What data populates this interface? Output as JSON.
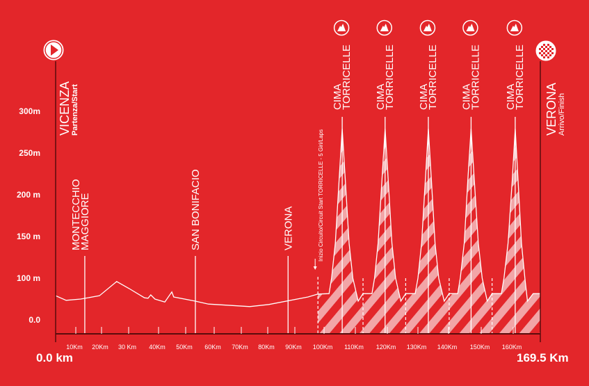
{
  "colors": {
    "background": "#e3262a",
    "line": "#ffffff",
    "axis": "#5a0c0c",
    "hatch": "#f2a5a7"
  },
  "chart_data": {
    "type": "area",
    "title": "",
    "xlabel": "",
    "ylabel": "",
    "x_start_label": "0.0 km",
    "x_end_label": "169.5 Km",
    "xlim": [
      0,
      169.5
    ],
    "ylim": [
      0,
      300
    ],
    "grid": false,
    "y_ticks": [
      {
        "value": 0,
        "label": "0.0"
      },
      {
        "value": 100,
        "label": "100 m"
      },
      {
        "value": 150,
        "label": "150 m"
      },
      {
        "value": 200,
        "label": "200 m"
      },
      {
        "value": 250,
        "label": "250m"
      },
      {
        "value": 300,
        "label": "300m"
      }
    ],
    "x_ticks": [
      {
        "value": 10,
        "label": "10Km"
      },
      {
        "value": 20,
        "label": "20Km"
      },
      {
        "value": 30,
        "label": "30 Km"
      },
      {
        "value": 40,
        "label": "40Km"
      },
      {
        "value": 50,
        "label": "50Km"
      },
      {
        "value": 60,
        "label": "60Km"
      },
      {
        "value": 70,
        "label": "70Km"
      },
      {
        "value": 80,
        "label": "80Km"
      },
      {
        "value": 90,
        "label": "90Km"
      },
      {
        "value": 100,
        "label": "100Km"
      },
      {
        "value": 110,
        "label": "110Km"
      },
      {
        "value": 120,
        "label": "120Km"
      },
      {
        "value": 130,
        "label": "130Km"
      },
      {
        "value": 140,
        "label": "140Km"
      },
      {
        "value": 150,
        "label": "150Km"
      },
      {
        "value": 160,
        "label": "160Km"
      }
    ],
    "profile": {
      "km": [
        0,
        5.2,
        11.9,
        19.2,
        25.6,
        30.2,
        35.3,
        36.5,
        37.4,
        38.8,
        42.3,
        44.9,
        45.6,
        53.4,
        58,
        73.2,
        80.4,
        94.5,
        97.9,
        101.6,
        102.4,
        103.6,
        104.8,
        105.8,
        106.8,
        108,
        109.2,
        110.9,
        112.4,
        115.2,
        116,
        117.1,
        118.3,
        119.3,
        120.3,
        121.5,
        122.7,
        124.4,
        126,
        129.1,
        130,
        131.2,
        132.4,
        133.4,
        134.4,
        135.6,
        136.8,
        138.6,
        140.2,
        142.8,
        143.6,
        144.8,
        145.9,
        146.9,
        147.9,
        149.1,
        150.3,
        151.9,
        153.4,
        156.3,
        157.1,
        158.4,
        159.7,
        160.7,
        161.7,
        162.9,
        164.1,
        165,
        167,
        169.5
      ],
      "elevation": [
        58,
        47,
        50,
        58,
        92,
        75,
        53,
        52,
        60,
        50,
        43,
        67,
        55,
        45,
        38,
        32,
        37,
        55,
        62,
        63,
        100,
        142,
        217,
        279,
        217,
        142,
        100,
        45,
        63,
        63,
        100,
        142,
        217,
        279,
        217,
        142,
        100,
        45,
        63,
        63,
        100,
        142,
        217,
        279,
        217,
        142,
        100,
        45,
        63,
        63,
        100,
        142,
        217,
        279,
        217,
        142,
        100,
        45,
        63,
        63,
        100,
        142,
        217,
        279,
        217,
        142,
        100,
        45,
        63,
        63
      ]
    },
    "circuit_range_km": [
      97.9,
      169.5
    ],
    "lap_start_km": [
      97.9,
      112.4,
      126,
      140.2,
      153.4
    ],
    "markers": [
      {
        "km": 13.5,
        "lines": [
          "MONTECCHIO",
          "MAGGIORE"
        ]
      },
      {
        "km": 53.4,
        "lines": [
          "SAN BONIFACIO"
        ]
      },
      {
        "km": 87.5,
        "lines": [
          "VERONA"
        ]
      }
    ],
    "circuit_label": "Inizio Circuito/Circuit Start TORRICELLE - 5 Giri/Laps",
    "climbs": [
      {
        "km": 105.8,
        "lines": [
          "CIMA",
          "TORRICELLE"
        ],
        "icon": "mountain-icon"
      },
      {
        "km": 119.3,
        "lines": [
          "CIMA",
          "TORRICELLE"
        ],
        "icon": "mountain-icon"
      },
      {
        "km": 133.4,
        "lines": [
          "CIMA",
          "TORRICELLE"
        ],
        "icon": "mountain-icon"
      },
      {
        "km": 146.9,
        "lines": [
          "CIMA",
          "TORRICELLE"
        ],
        "icon": "mountain-icon"
      },
      {
        "km": 160.7,
        "lines": [
          "CIMA",
          "TORRICELLE"
        ],
        "icon": "mountain-icon"
      }
    ],
    "start": {
      "name": "VICENZA",
      "sub": "Partenza/Start",
      "icon": "play-icon"
    },
    "finish": {
      "name": "VERONA",
      "sub": "Arrivo/Finish",
      "icon": "checkered-flag-icon"
    }
  }
}
